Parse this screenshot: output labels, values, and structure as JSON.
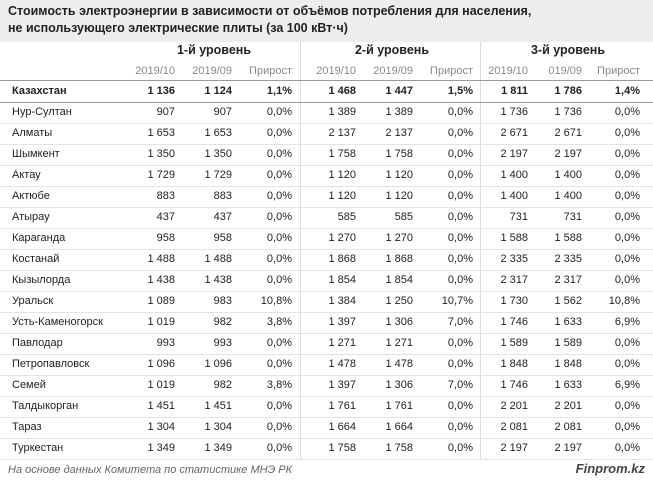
{
  "header": {
    "title_line1": "Стоимость электроэнергии в зависимости от объёмов потребления для населения,",
    "title_line2": "не использующего электрические плиты (за 100 кВт·ч)"
  },
  "table": {
    "groups": [
      "1-й уровень",
      "2-й уровень",
      "3-й уровень"
    ],
    "subheaders": [
      "2019/10",
      "2019/09",
      "Прирост",
      "2019/10",
      "2019/09",
      "Прирост",
      "2019/10",
      "019/09",
      "Прирост"
    ],
    "rows": [
      [
        "Казахстан",
        "1 136",
        "1 124",
        "1,1%",
        "1 468",
        "1 447",
        "1,5%",
        "1 811",
        "1 786",
        "1,4%"
      ],
      [
        "Нур-Султан",
        "907",
        "907",
        "0,0%",
        "1 389",
        "1 389",
        "0,0%",
        "1 736",
        "1 736",
        "0,0%"
      ],
      [
        "Алматы",
        "1 653",
        "1 653",
        "0,0%",
        "2 137",
        "2 137",
        "0,0%",
        "2 671",
        "2 671",
        "0,0%"
      ],
      [
        "Шымкент",
        "1 350",
        "1 350",
        "0,0%",
        "1 758",
        "1 758",
        "0,0%",
        "2 197",
        "2 197",
        "0,0%"
      ],
      [
        "Актау",
        "1 729",
        "1 729",
        "0,0%",
        "1 120",
        "1 120",
        "0,0%",
        "1 400",
        "1 400",
        "0,0%"
      ],
      [
        "Актюбе",
        "883",
        "883",
        "0,0%",
        "1 120",
        "1 120",
        "0,0%",
        "1 400",
        "1 400",
        "0,0%"
      ],
      [
        "Атырау",
        "437",
        "437",
        "0,0%",
        "585",
        "585",
        "0,0%",
        "731",
        "731",
        "0,0%"
      ],
      [
        "Караганда",
        "958",
        "958",
        "0,0%",
        "1 270",
        "1 270",
        "0,0%",
        "1 588",
        "1 588",
        "0,0%"
      ],
      [
        "Костанай",
        "1 488",
        "1 488",
        "0,0%",
        "1 868",
        "1 868",
        "0,0%",
        "2 335",
        "2 335",
        "0,0%"
      ],
      [
        "Кызылорда",
        "1 438",
        "1 438",
        "0,0%",
        "1 854",
        "1 854",
        "0,0%",
        "2 317",
        "2 317",
        "0,0%"
      ],
      [
        "Уральск",
        "1 089",
        "983",
        "10,8%",
        "1 384",
        "1 250",
        "10,7%",
        "1 730",
        "1 562",
        "10,8%"
      ],
      [
        "Усть-Каменогорск",
        "1 019",
        "982",
        "3,8%",
        "1 397",
        "1 306",
        "7,0%",
        "1 746",
        "1 633",
        "6,9%"
      ],
      [
        "Павлодар",
        "993",
        "993",
        "0,0%",
        "1 271",
        "1 271",
        "0,0%",
        "1 589",
        "1 589",
        "0,0%"
      ],
      [
        "Петропавловск",
        "1 096",
        "1 096",
        "0,0%",
        "1 478",
        "1 478",
        "0,0%",
        "1 848",
        "1 848",
        "0,0%"
      ],
      [
        "Семей",
        "1 019",
        "982",
        "3,8%",
        "1 397",
        "1 306",
        "7,0%",
        "1 746",
        "1 633",
        "6,9%"
      ],
      [
        "Талдыкорган",
        "1 451",
        "1 451",
        "0,0%",
        "1 761",
        "1 761",
        "0,0%",
        "2 201",
        "2 201",
        "0,0%"
      ],
      [
        "Тараз",
        "1 304",
        "1 304",
        "0,0%",
        "1 664",
        "1 664",
        "0,0%",
        "2 081",
        "2 081",
        "0,0%"
      ],
      [
        "Туркестан",
        "1 349",
        "1 349",
        "0,0%",
        "1 758",
        "1 758",
        "0,0%",
        "2 197",
        "2 197",
        "0,0%"
      ]
    ]
  },
  "footer": {
    "source": "На основе данных Комитета по статистике МНЭ РК",
    "brand": "Finprom.kz"
  }
}
